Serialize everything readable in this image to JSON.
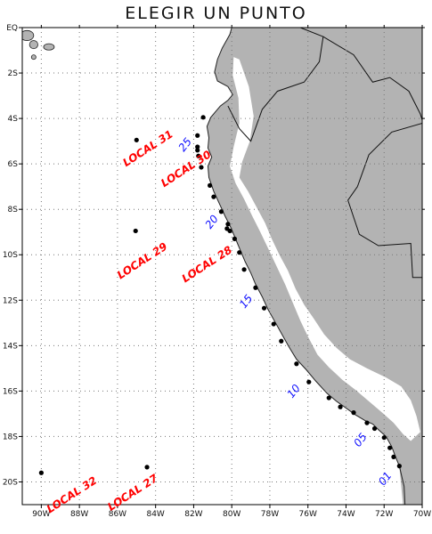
{
  "title": "ELEGIR UN PUNTO",
  "colors": {
    "land": "#b3b3b3",
    "grid": "#777777",
    "point": "#000000",
    "local_label": "#ff0000",
    "number_label": "#1010ff",
    "coast": "#222222"
  },
  "lon_ticks": [
    "90W",
    "88W",
    "86W",
    "84W",
    "82W",
    "80W",
    "78W",
    "76W",
    "74W",
    "72W",
    "70W"
  ],
  "lat_ticks": [
    "EQ",
    "2S",
    "4S",
    "6S",
    "8S",
    "10S",
    "12S",
    "14S",
    "16S",
    "18S",
    "20S"
  ],
  "coast_points": [
    {
      "lon": -71.2,
      "lat": -19.3
    },
    {
      "lon": -71.4,
      "lat": -18.9
    },
    {
      "lon": -71.6,
      "lat": -18.45
    },
    {
      "lon": -71.9,
      "lat": -18.0
    },
    {
      "lon": -72.3,
      "lat": -17.7
    },
    {
      "lon": -72.6,
      "lat": -17.45
    },
    {
      "lon": -73.0,
      "lat": -17.3
    },
    {
      "lon": -73.5,
      "lat": -17.05
    },
    {
      "lon": -74.0,
      "lat": -16.75
    },
    {
      "lon": -74.5,
      "lat": -16.45
    },
    {
      "lon": -75.0,
      "lat": -16.1
    },
    {
      "lon": -75.6,
      "lat": -15.55
    },
    {
      "lon": -76.1,
      "lat": -15.05
    },
    {
      "lon": -76.6,
      "lat": -14.6
    },
    {
      "lon": -77.0,
      "lat": -14.05
    },
    {
      "lon": -77.3,
      "lat": -13.6
    },
    {
      "lon": -77.7,
      "lat": -13.0
    },
    {
      "lon": -78.1,
      "lat": -12.4
    },
    {
      "lon": -78.4,
      "lat": -11.85
    },
    {
      "lon": -78.75,
      "lat": -11.3
    },
    {
      "lon": -79.0,
      "lat": -10.8
    },
    {
      "lon": -79.3,
      "lat": -10.3
    },
    {
      "lon": -79.55,
      "lat": -9.8
    },
    {
      "lon": -79.8,
      "lat": -9.3
    },
    {
      "lon": -80.05,
      "lat": -8.8
    },
    {
      "lon": -80.35,
      "lat": -8.3
    },
    {
      "lon": -80.65,
      "lat": -7.75
    },
    {
      "lon": -80.95,
      "lat": -7.2
    },
    {
      "lon": -81.2,
      "lat": -6.6
    },
    {
      "lon": -81.25,
      "lat": -6.1
    },
    {
      "lon": -81.05,
      "lat": -5.7
    },
    {
      "lon": -81.25,
      "lat": -5.3
    },
    {
      "lon": -81.2,
      "lat": -4.85
    },
    {
      "lon": -81.3,
      "lat": -4.35
    },
    {
      "lon": -81.1,
      "lat": -3.95
    },
    {
      "lon": -80.6,
      "lat": -3.45
    },
    {
      "lon": -80.2,
      "lat": -3.2
    },
    {
      "lon": -79.95,
      "lat": -2.95
    },
    {
      "lon": -80.2,
      "lat": -2.6
    },
    {
      "lon": -80.75,
      "lat": -2.35
    },
    {
      "lon": -80.9,
      "lat": -1.95
    },
    {
      "lon": -80.75,
      "lat": -1.4
    },
    {
      "lon": -80.5,
      "lat": -0.9
    },
    {
      "lon": -80.1,
      "lat": -0.3
    },
    {
      "lon": -80.0,
      "lat": 0.0
    }
  ],
  "highland": [
    [
      {
        "lon": -79.6,
        "lat": -1.4
      },
      {
        "lon": -79.1,
        "lat": -2.6
      },
      {
        "lon": -78.85,
        "lat": -3.9
      },
      {
        "lon": -79.05,
        "lat": -5.0
      },
      {
        "lon": -79.45,
        "lat": -5.9
      },
      {
        "lon": -79.6,
        "lat": -6.6
      },
      {
        "lon": -79.15,
        "lat": -7.2
      },
      {
        "lon": -78.7,
        "lat": -7.9
      },
      {
        "lon": -78.25,
        "lat": -8.6
      },
      {
        "lon": -77.9,
        "lat": -9.3
      },
      {
        "lon": -77.5,
        "lat": -10.0
      },
      {
        "lon": -77.05,
        "lat": -10.7
      },
      {
        "lon": -76.65,
        "lat": -11.5
      },
      {
        "lon": -76.2,
        "lat": -12.2
      },
      {
        "lon": -75.7,
        "lat": -12.8
      },
      {
        "lon": -75.15,
        "lat": -13.5
      },
      {
        "lon": -74.5,
        "lat": -14.1
      },
      {
        "lon": -73.8,
        "lat": -14.6
      },
      {
        "lon": -72.9,
        "lat": -15.0
      },
      {
        "lon": -71.9,
        "lat": -15.4
      },
      {
        "lon": -71.1,
        "lat": -15.8
      },
      {
        "lon": -70.6,
        "lat": -16.4
      },
      {
        "lon": -70.3,
        "lat": -17.1
      },
      {
        "lon": -70.1,
        "lat": -17.8
      },
      {
        "lon": -70.6,
        "lat": -18.2
      },
      {
        "lon": -71.0,
        "lat": -17.9
      },
      {
        "lon": -71.5,
        "lat": -17.4
      },
      {
        "lon": -72.1,
        "lat": -16.95
      },
      {
        "lon": -72.8,
        "lat": -16.45
      },
      {
        "lon": -73.5,
        "lat": -15.95
      },
      {
        "lon": -74.2,
        "lat": -15.5
      },
      {
        "lon": -74.9,
        "lat": -14.95
      },
      {
        "lon": -75.5,
        "lat": -14.4
      },
      {
        "lon": -76.0,
        "lat": -13.6
      },
      {
        "lon": -76.4,
        "lat": -12.9
      },
      {
        "lon": -76.8,
        "lat": -12.1
      },
      {
        "lon": -77.2,
        "lat": -11.3
      },
      {
        "lon": -77.65,
        "lat": -10.5
      },
      {
        "lon": -78.1,
        "lat": -9.7
      },
      {
        "lon": -78.5,
        "lat": -9.0
      },
      {
        "lon": -78.95,
        "lat": -8.25
      },
      {
        "lon": -79.35,
        "lat": -7.55
      },
      {
        "lon": -79.8,
        "lat": -6.85
      },
      {
        "lon": -80.1,
        "lat": -6.1
      },
      {
        "lon": -79.9,
        "lat": -5.25
      },
      {
        "lon": -79.6,
        "lat": -4.2
      },
      {
        "lon": -79.65,
        "lat": -3.1
      },
      {
        "lon": -79.95,
        "lat": -2.1
      },
      {
        "lon": -79.9,
        "lat": -1.3
      }
    ]
  ],
  "borders": [
    [
      {
        "lon": -80.2,
        "lat": -3.45
      },
      {
        "lon": -79.6,
        "lat": -4.45
      },
      {
        "lon": -79.0,
        "lat": -5.0
      },
      {
        "lon": -78.4,
        "lat": -3.6
      },
      {
        "lon": -77.6,
        "lat": -2.8
      },
      {
        "lon": -76.2,
        "lat": -2.4
      },
      {
        "lon": -75.4,
        "lat": -1.5
      },
      {
        "lon": -75.2,
        "lat": -0.4
      },
      {
        "lon": -76.4,
        "lat": 0.0
      }
    ],
    [
      {
        "lon": -75.2,
        "lat": -0.4
      },
      {
        "lon": -73.6,
        "lat": -1.2
      },
      {
        "lon": -72.6,
        "lat": -2.4
      },
      {
        "lon": -71.7,
        "lat": -2.2
      },
      {
        "lon": -70.7,
        "lat": -2.8
      },
      {
        "lon": -70.1,
        "lat": -3.8
      },
      {
        "lon": -69.95,
        "lat": -4.2
      }
    ],
    [
      {
        "lon": -73.4,
        "lat": -7.0
      },
      {
        "lon": -73.9,
        "lat": -7.6
      },
      {
        "lon": -73.3,
        "lat": -9.1
      },
      {
        "lon": -72.3,
        "lat": -9.6
      },
      {
        "lon": -70.6,
        "lat": -9.5
      },
      {
        "lon": -70.5,
        "lat": -11.0
      },
      {
        "lon": -69.95,
        "lat": -11.0
      }
    ],
    [
      {
        "lon": -73.4,
        "lat": -7.0
      },
      {
        "lon": -72.8,
        "lat": -5.6
      },
      {
        "lon": -71.6,
        "lat": -4.6
      },
      {
        "lon": -69.95,
        "lat": -4.2
      }
    ]
  ],
  "islands": [
    {
      "lon": -90.75,
      "lat": -0.35,
      "rx": 0.35,
      "ry": 0.22
    },
    {
      "lon": -91.3,
      "lat": -0.55,
      "rx": 0.3,
      "ry": 0.35
    },
    {
      "lon": -90.4,
      "lat": -0.75,
      "rx": 0.22,
      "ry": 0.18
    },
    {
      "lon": -89.6,
      "lat": -0.85,
      "rx": 0.28,
      "ry": 0.14
    },
    {
      "lon": -90.4,
      "lat": -1.3,
      "rx": 0.12,
      "ry": 0.1
    }
  ],
  "points": [
    {
      "id": "01",
      "lon": -71.2,
      "lat": -19.3,
      "label": "01"
    },
    {
      "id": "02",
      "lon": -71.5,
      "lat": -18.9,
      "label": ""
    },
    {
      "id": "03",
      "lon": -71.7,
      "lat": -18.5,
      "label": ""
    },
    {
      "id": "04",
      "lon": -72.0,
      "lat": -18.05,
      "label": ""
    },
    {
      "id": "05",
      "lon": -72.5,
      "lat": -17.65,
      "label": "05"
    },
    {
      "id": "06",
      "lon": -72.9,
      "lat": -17.4,
      "label": ""
    },
    {
      "id": "07",
      "lon": -73.6,
      "lat": -16.95,
      "label": ""
    },
    {
      "id": "08",
      "lon": -74.3,
      "lat": -16.7,
      "label": ""
    },
    {
      "id": "09",
      "lon": -74.9,
      "lat": -16.3,
      "label": ""
    },
    {
      "id": "10",
      "lon": -75.95,
      "lat": -15.6,
      "label": "10"
    },
    {
      "id": "11",
      "lon": -76.6,
      "lat": -14.8,
      "label": ""
    },
    {
      "id": "12",
      "lon": -77.4,
      "lat": -13.8,
      "label": ""
    },
    {
      "id": "13",
      "lon": -77.8,
      "lat": -13.05,
      "label": ""
    },
    {
      "id": "14",
      "lon": -78.3,
      "lat": -12.35,
      "label": ""
    },
    {
      "id": "15",
      "lon": -78.75,
      "lat": -11.45,
      "label": "15"
    },
    {
      "id": "16",
      "lon": -79.35,
      "lat": -10.65,
      "label": ""
    },
    {
      "id": "17",
      "lon": -79.6,
      "lat": -9.9,
      "label": ""
    },
    {
      "id": "18",
      "lon": -79.85,
      "lat": -9.3,
      "label": ""
    },
    {
      "id": "19",
      "lon": -80.1,
      "lat": -8.95,
      "label": ""
    },
    {
      "id": "20",
      "lon": -80.2,
      "lat": -8.65,
      "label": "20"
    },
    {
      "id": "21",
      "lon": -80.55,
      "lat": -8.1,
      "label": ""
    },
    {
      "id": "22",
      "lon": -80.95,
      "lat": -7.45,
      "label": ""
    },
    {
      "id": "23",
      "lon": -81.15,
      "lat": -6.95,
      "label": ""
    },
    {
      "id": "24",
      "lon": -81.6,
      "lat": -6.15,
      "label": ""
    },
    {
      "id": "25",
      "lon": -81.8,
      "lat": -4.75,
      "label": "25"
    },
    {
      "id": "26",
      "lon": -81.5,
      "lat": -3.95,
      "label": ""
    },
    {
      "id": "26b",
      "lon": -81.8,
      "lat": -5.25,
      "label": ""
    },
    {
      "id": "26c",
      "lon": -81.75,
      "lat": -5.65,
      "label": ""
    }
  ],
  "locals": [
    {
      "id": "27",
      "lon": -84.45,
      "lat": -19.35,
      "label": "LOCAL 27"
    },
    {
      "id": "28",
      "lon": -80.25,
      "lat": -8.85,
      "label": "LOCAL 28"
    },
    {
      "id": "29",
      "lon": -85.05,
      "lat": -8.95,
      "label": "LOCAL 29"
    },
    {
      "id": "30",
      "lon": -81.8,
      "lat": -5.4,
      "label": "LOCAL 30"
    },
    {
      "id": "31",
      "lon": -85.0,
      "lat": -4.95,
      "label": "LOCAL 31"
    },
    {
      "id": "32",
      "lon": -90.0,
      "lat": -19.6,
      "label": "LOCAL 32"
    }
  ],
  "local_label_anchor": {
    "27": {
      "lon": -85.1,
      "lat": -20.6
    },
    "28": {
      "lon": -81.2,
      "lat": -10.55
    },
    "29": {
      "lon": -84.6,
      "lat": -10.4
    },
    "30": {
      "lon": -82.3,
      "lat": -6.35
    },
    "31": {
      "lon": -84.3,
      "lat": -5.45
    },
    "32": {
      "lon": -88.3,
      "lat": -20.7
    }
  },
  "number_label_anchor": {
    "01": {
      "lon": -71.8,
      "lat": -19.95
    },
    "05": {
      "lon": -73.1,
      "lat": -18.25
    },
    "10": {
      "lon": -76.6,
      "lat": -16.1
    },
    "15": {
      "lon": -79.1,
      "lat": -12.15
    },
    "20": {
      "lon": -80.9,
      "lat": -8.65
    },
    "25": {
      "lon": -82.3,
      "lat": -5.25
    }
  }
}
